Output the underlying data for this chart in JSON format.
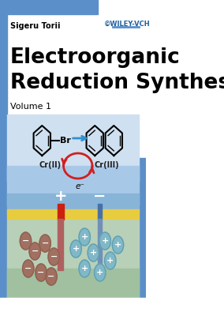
{
  "white_area": "#ffffff",
  "title_line1": "Electroorganic",
  "title_line2": "Reduction Synthesis",
  "author": "Sigeru Torii",
  "volume": "Volume 1",
  "publisher": "©WILEY-VCH",
  "blue_header_color": "#5b8fc9",
  "blue_sidebar_color": "#5b8fc9",
  "light_blue_top": "#d0e4f4",
  "light_blue_mid": "#b8d4ed",
  "light_blue_dark": "#7aadd8",
  "green_solution_color": "#b0ccb8",
  "yellow_membrane": "#e8cc40",
  "red_electrode_color": "#cc2010",
  "blue_electrode_color": "#4870a8",
  "red_electrode_faded": "#b06060",
  "blue_electrode_faded": "#7090b8",
  "positive_ion_color": "#80b8c8",
  "negative_ion_color": "#a07060",
  "wiley_blue": "#2060a0",
  "arrow_blue": "#3090d0",
  "arrow_red": "#d02020",
  "cr_label_color": "#202020"
}
